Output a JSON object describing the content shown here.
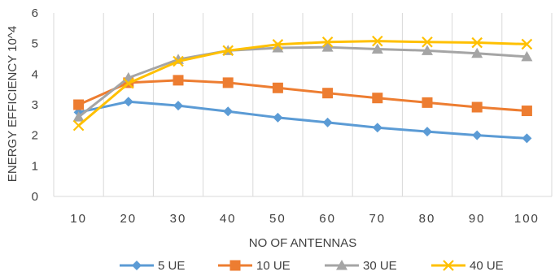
{
  "chart_data": {
    "type": "line",
    "title": "",
    "xlabel": "NO OF ANTENNAS",
    "ylabel": "ENERGY EFFICIENCY 10^4",
    "categories": [
      "10",
      "20",
      "30",
      "40",
      "50",
      "60",
      "70",
      "80",
      "90",
      "100"
    ],
    "ylim": [
      0,
      6
    ],
    "yticks": [
      "0",
      "1",
      "2",
      "3",
      "4",
      "5",
      "6"
    ],
    "grid": "vertical",
    "legend_position": "bottom",
    "series": [
      {
        "name": "5 UE",
        "color": "#5b9bd5",
        "marker": "diamond",
        "values": [
          2.75,
          3.1,
          2.97,
          2.78,
          2.58,
          2.42,
          2.25,
          2.12,
          2.0,
          1.9
        ]
      },
      {
        "name": "10 UE",
        "color": "#ed7d31",
        "marker": "square",
        "values": [
          3.0,
          3.72,
          3.8,
          3.72,
          3.55,
          3.38,
          3.22,
          3.07,
          2.92,
          2.8
        ]
      },
      {
        "name": "30 UE",
        "color": "#a5a5a5",
        "marker": "triangle",
        "values": [
          2.6,
          3.88,
          4.48,
          4.77,
          4.86,
          4.88,
          4.82,
          4.77,
          4.68,
          4.57
        ]
      },
      {
        "name": "40 UE",
        "color": "#ffc000",
        "marker": "x",
        "values": [
          2.32,
          3.7,
          4.42,
          4.77,
          4.97,
          5.05,
          5.08,
          5.05,
          5.03,
          4.98
        ]
      }
    ]
  }
}
